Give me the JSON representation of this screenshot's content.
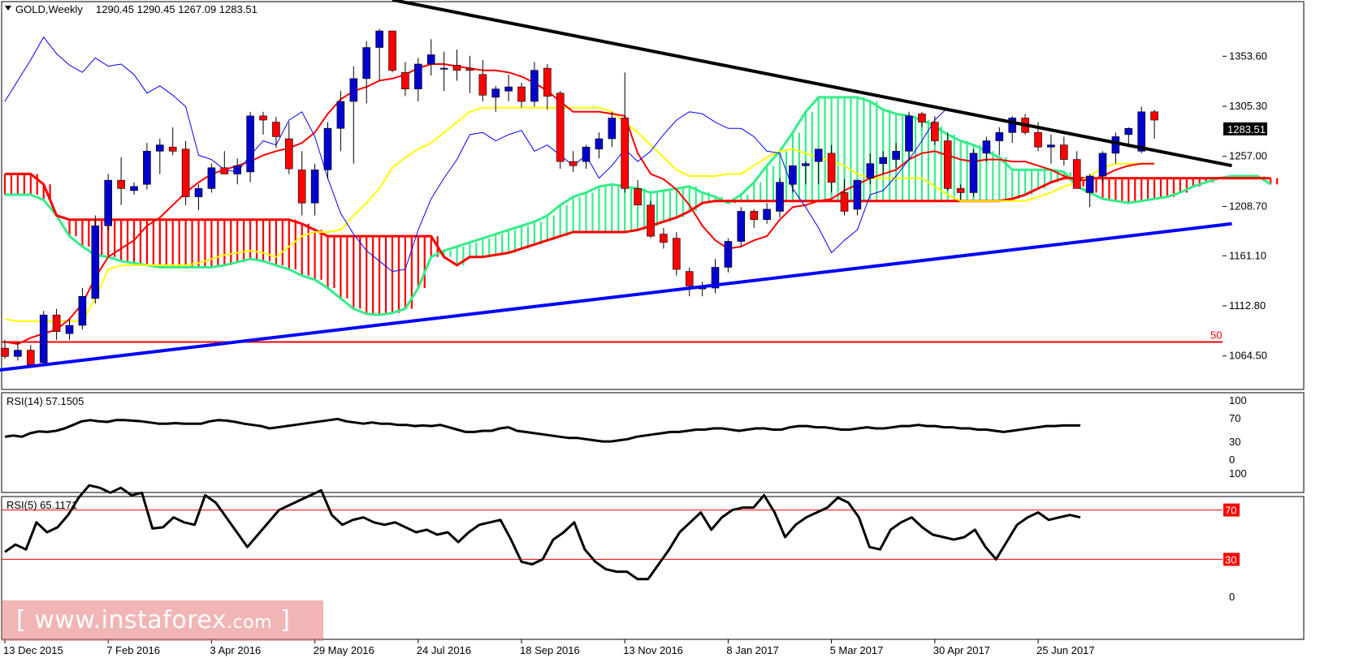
{
  "header": {
    "symbol": "GOLD,Weekly",
    "ohlc": "1290.45 1290.45 1267.09 1283.51"
  },
  "watermark": {
    "open": "[",
    "site": "www.instaforex",
    "tld": ".com",
    "close": "]"
  },
  "colors": {
    "bull_candle": "#0000cc",
    "bear_candle": "#ff0000",
    "tenkan": "#ff0000",
    "kijun": "#ffff00",
    "chikou": "#0000ff",
    "senkou_a": "#33ee88",
    "senkou_b": "#ff0000",
    "trend_resistance": "#000000",
    "trend_support": "#0000ff",
    "level_line": "#ff0000",
    "rsi_line": "#000000"
  },
  "chart_data": [
    {
      "type": "candlestick",
      "panel": "price",
      "title": "GOLD,Weekly",
      "ohlc_header": [
        1290.45,
        1290.45,
        1267.09,
        1283.51
      ],
      "current_price": 1283.51,
      "ylim": [
        1040,
        1400
      ],
      "y_ticks": [
        "1353.60",
        "1305.30",
        "1257.00",
        "1208.70",
        "1161.10",
        "1112.80",
        "1064.50"
      ],
      "x_ticks": [
        "13 Dec 2015",
        "7 Feb 2016",
        "3 Apr 2016",
        "29 May 2016",
        "24 Jul 2016",
        "18 Sep 2016",
        "13 Nov 2016",
        "8 Jan 2017",
        "5 Mar 2017",
        "30 Apr 2017",
        "25 Jun 2017"
      ],
      "candles": [
        [
          1072,
          1080,
          1062,
          1064
        ],
        [
          1064,
          1078,
          1060,
          1070
        ],
        [
          1070,
          1075,
          1054,
          1056
        ],
        [
          1058,
          1108,
          1055,
          1104
        ],
        [
          1104,
          1110,
          1080,
          1088
        ],
        [
          1086,
          1100,
          1080,
          1094
        ],
        [
          1094,
          1130,
          1090,
          1122
        ],
        [
          1120,
          1200,
          1115,
          1190
        ],
        [
          1190,
          1240,
          1185,
          1234
        ],
        [
          1234,
          1256,
          1210,
          1226
        ],
        [
          1224,
          1232,
          1220,
          1228
        ],
        [
          1230,
          1270,
          1225,
          1262
        ],
        [
          1262,
          1274,
          1240,
          1268
        ],
        [
          1266,
          1285,
          1258,
          1262
        ],
        [
          1264,
          1272,
          1210,
          1218
        ],
        [
          1218,
          1230,
          1205,
          1226
        ],
        [
          1226,
          1250,
          1222,
          1246
        ],
        [
          1246,
          1262,
          1240,
          1240
        ],
        [
          1240,
          1255,
          1230,
          1248
        ],
        [
          1242,
          1300,
          1232,
          1296
        ],
        [
          1296,
          1300,
          1278,
          1292
        ],
        [
          1290,
          1295,
          1265,
          1276
        ],
        [
          1274,
          1290,
          1240,
          1245
        ],
        [
          1244,
          1262,
          1200,
          1212
        ],
        [
          1212,
          1250,
          1200,
          1244
        ],
        [
          1244,
          1290,
          1235,
          1284
        ],
        [
          1284,
          1320,
          1262,
          1310
        ],
        [
          1310,
          1344,
          1250,
          1332
        ],
        [
          1332,
          1368,
          1308,
          1362
        ],
        [
          1362,
          1380,
          1330,
          1378
        ],
        [
          1378,
          1375,
          1338,
          1340
        ],
        [
          1338,
          1348,
          1315,
          1322
        ],
        [
          1322,
          1352,
          1310,
          1346
        ],
        [
          1346,
          1370,
          1335,
          1355
        ],
        [
          1342,
          1358,
          1320,
          1342
        ],
        [
          1345,
          1360,
          1330,
          1340
        ],
        [
          1342,
          1354,
          1318,
          1340
        ],
        [
          1336,
          1350,
          1310,
          1316
        ],
        [
          1314,
          1325,
          1300,
          1322
        ],
        [
          1320,
          1336,
          1310,
          1324
        ],
        [
          1324,
          1328,
          1304,
          1310
        ],
        [
          1310,
          1348,
          1305,
          1340
        ],
        [
          1342,
          1346,
          1302,
          1315
        ],
        [
          1318,
          1320,
          1245,
          1252
        ],
        [
          1252,
          1262,
          1242,
          1248
        ],
        [
          1252,
          1268,
          1245,
          1266
        ],
        [
          1264,
          1280,
          1255,
          1274
        ],
        [
          1274,
          1300,
          1266,
          1294
        ],
        [
          1294,
          1338,
          1222,
          1226
        ],
        [
          1226,
          1234,
          1210,
          1210
        ],
        [
          1210,
          1214,
          1178,
          1180
        ],
        [
          1182,
          1188,
          1168,
          1174
        ],
        [
          1178,
          1184,
          1142,
          1148
        ],
        [
          1146,
          1150,
          1122,
          1132
        ],
        [
          1130,
          1136,
          1122,
          1130
        ],
        [
          1130,
          1158,
          1125,
          1150
        ],
        [
          1150,
          1178,
          1145,
          1175
        ],
        [
          1175,
          1208,
          1170,
          1204
        ],
        [
          1204,
          1206,
          1188,
          1196
        ],
        [
          1196,
          1212,
          1192,
          1206
        ],
        [
          1204,
          1236,
          1198,
          1232
        ],
        [
          1230,
          1245,
          1222,
          1248
        ],
        [
          1248,
          1252,
          1230,
          1250
        ],
        [
          1252,
          1262,
          1230,
          1264
        ],
        [
          1260,
          1268,
          1222,
          1232
        ],
        [
          1222,
          1235,
          1200,
          1204
        ],
        [
          1206,
          1232,
          1200,
          1234
        ],
        [
          1236,
          1260,
          1230,
          1250
        ],
        [
          1250,
          1262,
          1240,
          1256
        ],
        [
          1254,
          1270,
          1246,
          1262
        ],
        [
          1262,
          1300,
          1255,
          1296
        ],
        [
          1298,
          1300,
          1285,
          1290
        ],
        [
          1290,
          1296,
          1268,
          1272
        ],
        [
          1272,
          1280,
          1224,
          1226
        ],
        [
          1226,
          1230,
          1215,
          1222
        ],
        [
          1222,
          1264,
          1218,
          1260
        ],
        [
          1260,
          1276,
          1252,
          1272
        ],
        [
          1272,
          1285,
          1258,
          1280
        ],
        [
          1280,
          1296,
          1270,
          1294
        ],
        [
          1294,
          1298,
          1278,
          1280
        ],
        [
          1280,
          1290,
          1262,
          1266
        ],
        [
          1266,
          1278,
          1250,
          1268
        ],
        [
          1268,
          1276,
          1248,
          1254
        ],
        [
          1254,
          1262,
          1226,
          1226
        ],
        [
          1222,
          1240,
          1208,
          1238
        ],
        [
          1238,
          1262,
          1232,
          1260
        ],
        [
          1260,
          1280,
          1250,
          1276
        ],
        [
          1278,
          1285,
          1266,
          1284
        ],
        [
          1262,
          1305,
          1260,
          1300
        ],
        [
          1300,
          1302,
          1274,
          1292
        ]
      ],
      "tenkan_sen": [
        1078,
        1076,
        1082,
        1086,
        1090,
        1100,
        1115,
        1140,
        1160,
        1168,
        1176,
        1190,
        1198,
        1210,
        1222,
        1232,
        1240,
        1244,
        1248,
        1252,
        1258,
        1262,
        1265,
        1270,
        1280,
        1298,
        1312,
        1320,
        1324,
        1330,
        1332,
        1336,
        1342,
        1346,
        1346,
        1344,
        1342,
        1340,
        1340,
        1338,
        1334,
        1328,
        1320,
        1310,
        1300,
        1300,
        1300,
        1298,
        1296,
        1260,
        1240,
        1235,
        1225,
        1210,
        1190,
        1176,
        1168,
        1170,
        1176,
        1180,
        1196,
        1208,
        1210,
        1214,
        1216,
        1224,
        1230,
        1236,
        1240,
        1244,
        1254,
        1260,
        1262,
        1258,
        1254,
        1252,
        1254,
        1254,
        1252,
        1252,
        1248,
        1244,
        1238,
        1234,
        1234,
        1238,
        1244,
        1248,
        1250,
        1250
      ],
      "kijun_sen": [
        1100,
        1098,
        1098,
        1098,
        1098,
        1098,
        1098,
        1120,
        1148,
        1152,
        1152,
        1152,
        1152,
        1152,
        1152,
        1154,
        1158,
        1162,
        1164,
        1166,
        1164,
        1160,
        1170,
        1180,
        1184,
        1184,
        1186,
        1200,
        1212,
        1226,
        1246,
        1256,
        1264,
        1270,
        1280,
        1290,
        1300,
        1304,
        1304,
        1304,
        1304,
        1304,
        1304,
        1304,
        1304,
        1304,
        1304,
        1300,
        1290,
        1280,
        1268,
        1256,
        1244,
        1238,
        1238,
        1238,
        1240,
        1240,
        1248,
        1256,
        1262,
        1264,
        1260,
        1256,
        1252,
        1248,
        1240,
        1236,
        1236,
        1236,
        1236,
        1236,
        1228,
        1220,
        1214,
        1214,
        1214,
        1214,
        1214,
        1214,
        1218,
        1222,
        1228,
        1232,
        1238,
        1246,
        1250,
        1250,
        1250,
        1250
      ],
      "chikou_span": [
        1310,
        1330,
        1350,
        1372,
        1356,
        1345,
        1338,
        1352,
        1344,
        1346,
        1336,
        1318,
        1325,
        1316,
        1305,
        1258,
        1254,
        1244,
        1242,
        1258,
        1272,
        1268,
        1292,
        1300,
        1276,
        1236,
        1202,
        1182,
        1166,
        1156,
        1146,
        1148,
        1186,
        1216,
        1236,
        1254,
        1278,
        1280,
        1272,
        1278,
        1282,
        1262,
        1268,
        1258,
        1248,
        1258,
        1236,
        1248,
        1264,
        1252,
        1262,
        1278,
        1292,
        1300,
        1298,
        1290,
        1284,
        1284,
        1276,
        1262,
        1260,
        1226,
        1208,
        1188,
        1164,
        1176,
        1186,
        1220,
        1224,
        1238,
        1254,
        1272,
        1292,
        1304
      ],
      "senkou_a": [
        1220,
        1220,
        1220,
        1215,
        1200,
        1180,
        1170,
        1162,
        1160,
        1156,
        1154,
        1152,
        1150,
        1150,
        1150,
        1150,
        1150,
        1152,
        1155,
        1158,
        1156,
        1152,
        1148,
        1142,
        1138,
        1130,
        1120,
        1110,
        1105,
        1104,
        1106,
        1110,
        1130,
        1160,
        1166,
        1170,
        1174,
        1178,
        1182,
        1186,
        1190,
        1194,
        1200,
        1210,
        1218,
        1222,
        1228,
        1230,
        1228,
        1226,
        1222,
        1224,
        1226,
        1228,
        1222,
        1218,
        1212,
        1220,
        1232,
        1248,
        1262,
        1280,
        1300,
        1314,
        1314,
        1314,
        1314,
        1310,
        1302,
        1298,
        1296,
        1292,
        1286,
        1278,
        1272,
        1268,
        1262,
        1256,
        1244,
        1244,
        1244,
        1244,
        1242,
        1228,
        1222,
        1216,
        1214,
        1212,
        1214,
        1216,
        1218,
        1222,
        1228,
        1232,
        1236,
        1238,
        1238,
        1238,
        1230
      ],
      "senkou_b": [
        1240,
        1240,
        1240,
        1230,
        1200,
        1196,
        1196,
        1196,
        1196,
        1196,
        1196,
        1196,
        1196,
        1196,
        1196,
        1196,
        1196,
        1196,
        1196,
        1196,
        1196,
        1196,
        1196,
        1192,
        1186,
        1180,
        1180,
        1180,
        1180,
        1180,
        1180,
        1180,
        1180,
        1180,
        1160,
        1152,
        1160,
        1160,
        1162,
        1164,
        1168,
        1172,
        1176,
        1180,
        1184,
        1184,
        1184,
        1184,
        1184,
        1186,
        1190,
        1194,
        1198,
        1204,
        1212,
        1214,
        1214,
        1214,
        1214,
        1214,
        1214,
        1214,
        1214,
        1214,
        1214,
        1214,
        1214,
        1214,
        1214,
        1214,
        1214,
        1214,
        1214,
        1214,
        1214,
        1214,
        1214,
        1214,
        1216,
        1220,
        1226,
        1232,
        1236,
        1236,
        1236,
        1236,
        1236,
        1236,
        1236,
        1236,
        1236,
        1236,
        1236,
        1236,
        1236,
        1236,
        1236,
        1236,
        1236
      ],
      "trendlines": [
        {
          "from": [
            30,
            1408
          ],
          "to": [
            95,
            1248
          ]
        },
        {
          "from": [
            -1,
            1050
          ],
          "to": [
            95,
            1192
          ]
        }
      ],
      "level": {
        "value": 1078,
        "label": "50"
      }
    },
    {
      "type": "line",
      "panel": "rsi14",
      "title": "RSI(14) 57.1505",
      "ylim": [
        0,
        100
      ],
      "y_ticks": [
        "100",
        "70",
        "30",
        "0"
      ],
      "values": [
        38,
        40,
        38,
        44,
        47,
        46,
        48,
        52,
        58,
        64,
        66,
        64,
        63,
        66,
        66,
        65,
        64,
        62,
        60,
        60,
        61,
        60,
        60,
        60,
        64,
        66,
        65,
        63,
        60,
        58,
        56,
        52,
        54,
        56,
        58,
        60,
        62,
        64,
        66,
        68,
        64,
        62,
        60,
        62,
        60,
        60,
        58,
        58,
        56,
        57,
        56,
        58,
        54,
        50,
        46,
        46,
        48,
        48,
        52,
        54,
        48,
        46,
        44,
        42,
        40,
        38,
        36,
        36,
        34,
        32,
        30,
        30,
        32,
        34,
        38,
        40,
        42,
        44,
        46,
        46,
        48,
        50,
        50,
        52,
        52,
        50,
        48,
        50,
        52,
        52,
        50,
        50,
        54,
        56,
        56,
        54,
        54,
        52,
        50,
        50,
        52,
        54,
        52,
        52,
        54,
        56,
        56,
        58,
        56,
        56,
        54,
        54,
        52,
        52,
        50,
        50,
        48,
        46,
        48,
        50,
        52,
        54,
        56,
        56,
        57,
        57,
        57
      ]
    },
    {
      "type": "line",
      "panel": "rsi5",
      "title": "RSI(5) 65.1171",
      "ylim": [
        0,
        100
      ],
      "y_ticks": [
        "100",
        "70",
        "30",
        "0"
      ],
      "levels": [
        70,
        30
      ],
      "values": [
        36,
        42,
        38,
        60,
        52,
        56,
        66,
        80,
        90,
        88,
        84,
        88,
        82,
        84,
        55,
        56,
        64,
        60,
        58,
        82,
        76,
        64,
        52,
        40,
        50,
        60,
        70,
        74,
        78,
        82,
        86,
        66,
        58,
        62,
        64,
        60,
        58,
        60,
        56,
        52,
        54,
        50,
        52,
        44,
        52,
        58,
        60,
        62,
        46,
        28,
        26,
        30,
        46,
        52,
        60,
        38,
        28,
        22,
        20,
        20,
        14,
        14,
        26,
        38,
        52,
        60,
        68,
        54,
        64,
        70,
        72,
        72,
        82,
        68,
        48,
        58,
        64,
        68,
        72,
        80,
        76,
        64,
        40,
        38,
        54,
        60,
        64,
        56,
        50,
        48,
        46,
        48,
        54,
        40,
        30,
        44,
        58,
        64,
        68,
        62,
        64,
        66,
        64
      ]
    }
  ]
}
